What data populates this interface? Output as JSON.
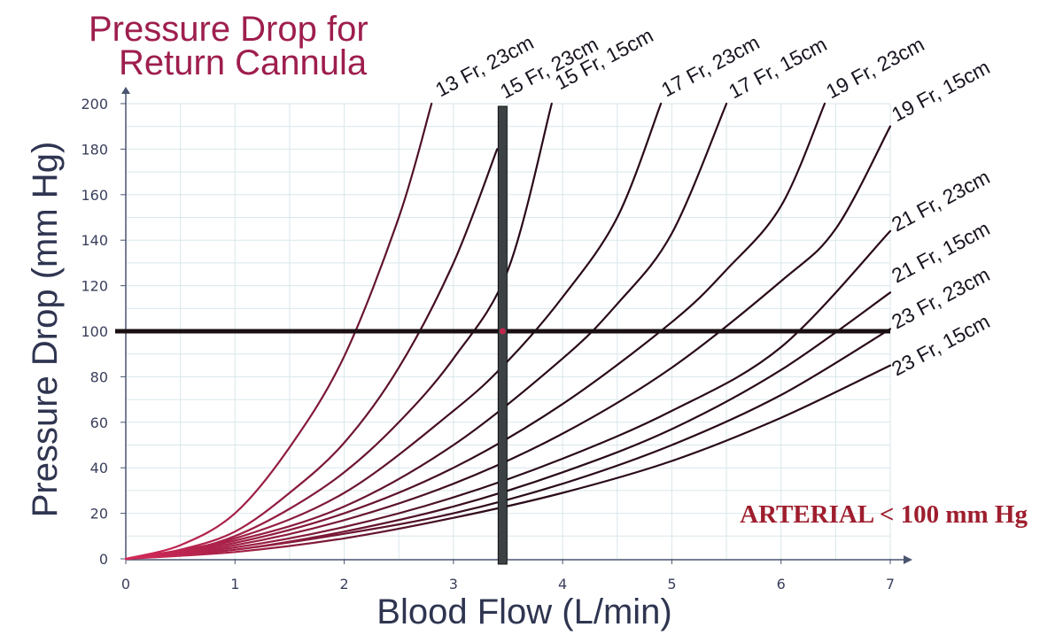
{
  "chart_data": {
    "type": "line",
    "title_lines": [
      "Pressure Drop for",
      "Return Cannula"
    ],
    "xlabel": "Blood Flow (L/min)",
    "ylabel": "Pressure Drop (mm Hg)",
    "xlim": [
      0,
      7
    ],
    "ylim": [
      0,
      200
    ],
    "x_ticks": [
      0,
      1,
      2,
      3,
      4,
      5,
      6,
      7
    ],
    "y_ticks": [
      0,
      20,
      40,
      60,
      80,
      100,
      120,
      140,
      160,
      180,
      200
    ],
    "grid": true,
    "series": [
      {
        "name": "13 Fr, 23cm",
        "x": [
          0,
          0.5,
          1,
          1.5,
          2,
          2.5,
          2.8
        ],
        "y": [
          0,
          6,
          20,
          49,
          89,
          150,
          200
        ]
      },
      {
        "name": "15 Fr, 23cm",
        "x": [
          0,
          0.5,
          1,
          1.5,
          2,
          2.5,
          3,
          3.4
        ],
        "y": [
          0,
          4,
          12,
          29,
          51,
          84,
          130,
          180
        ]
      },
      {
        "name": "15 Fr, 15cm",
        "x": [
          0,
          0.5,
          1,
          1.5,
          2,
          2.5,
          3,
          3.5,
          3.9
        ],
        "y": [
          0,
          3,
          10,
          22,
          38,
          60,
          88,
          127,
          200
        ]
      },
      {
        "name": "17 Fr, 23cm",
        "x": [
          0,
          1,
          2,
          3,
          3.5,
          4,
          4.5,
          4.9
        ],
        "y": [
          0,
          9,
          29,
          65,
          87,
          115,
          150,
          200
        ]
      },
      {
        "name": "17 Fr, 15cm",
        "x": [
          0,
          1,
          2,
          3,
          4,
          4.5,
          5,
          5.5
        ],
        "y": [
          0,
          8,
          23,
          50,
          88,
          112,
          143,
          200
        ]
      },
      {
        "name": "19 Fr, 23cm",
        "x": [
          0,
          1,
          2,
          3,
          4,
          5,
          5.5,
          6,
          6.4
        ],
        "y": [
          0,
          7,
          20,
          40,
          68,
          104,
          127,
          155,
          200
        ]
      },
      {
        "name": "19 Fr, 15cm",
        "x": [
          0,
          1,
          2,
          3,
          4,
          5,
          6,
          6.5,
          7
        ],
        "y": [
          0,
          6,
          17,
          33,
          55,
          84,
          122,
          145,
          190
        ]
      },
      {
        "name": "21 Fr, 23cm",
        "x": [
          0,
          1,
          2,
          3,
          4,
          5,
          6,
          7
        ],
        "y": [
          0,
          5,
          14,
          27,
          44,
          65,
          93,
          144
        ]
      },
      {
        "name": "21 Fr, 15cm",
        "x": [
          0,
          1,
          2,
          3,
          4,
          5,
          6,
          7
        ],
        "y": [
          0,
          4,
          12,
          23,
          38,
          57,
          83,
          117
        ]
      },
      {
        "name": "23 Fr, 23cm",
        "x": [
          0,
          1,
          2,
          3,
          4,
          5,
          6,
          7
        ],
        "y": [
          0,
          4,
          11,
          20,
          33,
          50,
          72,
          101
        ]
      },
      {
        "name": "23 Fr, 15cm",
        "x": [
          0,
          1,
          2,
          3,
          4,
          5,
          6,
          7
        ],
        "y": [
          0,
          3,
          9,
          18,
          29,
          43,
          62,
          85
        ]
      }
    ],
    "reference_lines": {
      "horizontal_y": 100,
      "vertical_x": 3.45
    },
    "annotation": "ARTERIAL < 100 mm Hg"
  },
  "colors": {
    "title": "#9e1e4e",
    "curve": "#2a0a1a",
    "curve_origin": "#d62a5a",
    "grid": "#d9e6ea",
    "axis": "#4a5570",
    "ref_line": "#1a0f12",
    "vertical_bar": "#3c4244",
    "annotation": "#9e1e2e"
  }
}
